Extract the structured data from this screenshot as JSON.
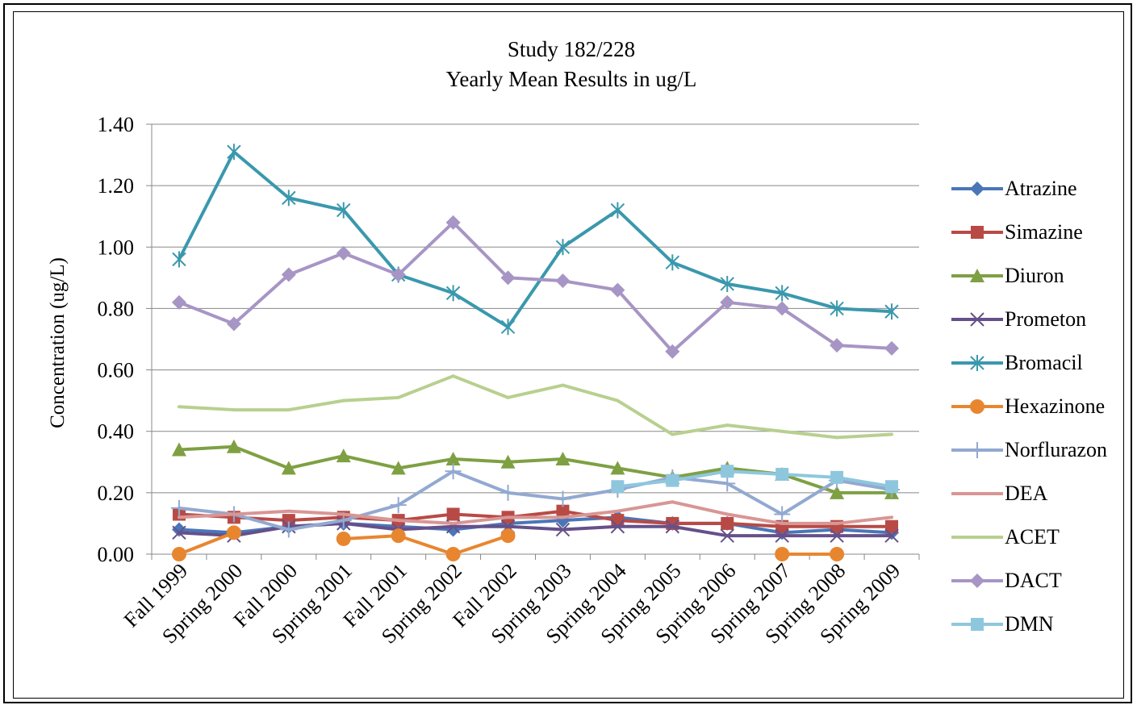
{
  "chart_data": {
    "type": "line",
    "title": "Study 182/228",
    "subtitle": "Yearly Mean Results in ug/L",
    "xlabel": "",
    "ylabel": "Concentration (ug/L)",
    "ylim": [
      0,
      1.4
    ],
    "yticks": [
      "0.00",
      "0.20",
      "0.40",
      "0.60",
      "0.80",
      "1.00",
      "1.20",
      "1.40"
    ],
    "grid": true,
    "legend_position": "right",
    "categories": [
      "Fall 1999",
      "Spring 2000",
      "Fall 2000",
      "Spring 2001",
      "Fall 2001",
      "Spring 2002",
      "Fall 2002",
      "Spring 2003",
      "Spring 2004",
      "Spring 2005",
      "Spring 2006",
      "Spring 2007",
      "Spring 2008",
      "Spring 2009"
    ],
    "series": [
      {
        "name": "Atrazine",
        "color": "#4a76b8",
        "marker": "diamond",
        "values": [
          0.08,
          0.07,
          0.09,
          0.1,
          0.09,
          0.08,
          0.1,
          0.11,
          0.12,
          0.1,
          0.1,
          0.07,
          0.08,
          0.07
        ]
      },
      {
        "name": "Simazine",
        "color": "#b84a46",
        "marker": "square",
        "values": [
          0.13,
          0.12,
          0.11,
          0.12,
          0.11,
          0.13,
          0.12,
          0.14,
          0.11,
          0.1,
          0.1,
          0.09,
          0.09,
          0.09
        ]
      },
      {
        "name": "Diuron",
        "color": "#7ea043",
        "marker": "triangle",
        "values": [
          0.34,
          0.35,
          0.28,
          0.32,
          0.28,
          0.31,
          0.3,
          0.31,
          0.28,
          0.25,
          0.28,
          0.26,
          0.2,
          0.2
        ]
      },
      {
        "name": "Prometon",
        "color": "#65508a",
        "marker": "x",
        "values": [
          0.07,
          0.06,
          0.09,
          0.1,
          0.08,
          0.09,
          0.09,
          0.08,
          0.09,
          0.09,
          0.06,
          0.06,
          0.06,
          0.06
        ]
      },
      {
        "name": "Bromacil",
        "color": "#3a98ad",
        "marker": "star",
        "values": [
          0.96,
          1.31,
          1.16,
          1.12,
          0.91,
          0.85,
          0.74,
          1.0,
          1.12,
          0.95,
          0.88,
          0.85,
          0.8,
          0.79
        ]
      },
      {
        "name": "Hexazinone",
        "color": "#e8862f",
        "marker": "circle",
        "values": [
          0.0,
          0.07,
          null,
          0.05,
          0.06,
          0.0,
          0.06,
          null,
          null,
          null,
          null,
          0.0,
          0.0,
          null
        ]
      },
      {
        "name": "Norflurazon",
        "color": "#92a9d1",
        "marker": "plus",
        "values": [
          0.15,
          0.13,
          0.08,
          0.11,
          0.16,
          0.27,
          0.2,
          0.18,
          0.21,
          0.25,
          0.23,
          0.13,
          0.24,
          0.21
        ]
      },
      {
        "name": "DEA",
        "color": "#d89694",
        "marker": "none",
        "values": [
          0.12,
          0.13,
          0.14,
          0.13,
          0.11,
          0.1,
          0.12,
          0.12,
          0.14,
          0.17,
          0.13,
          0.1,
          0.1,
          0.12
        ]
      },
      {
        "name": "ACET",
        "color": "#b8d08f",
        "marker": "none",
        "values": [
          0.48,
          0.47,
          0.47,
          0.5,
          0.51,
          0.58,
          0.51,
          0.55,
          0.5,
          0.39,
          0.42,
          0.4,
          0.38,
          0.39
        ]
      },
      {
        "name": "DACT",
        "color": "#a795c5",
        "marker": "diamond",
        "values": [
          0.82,
          0.75,
          0.91,
          0.98,
          0.91,
          1.08,
          0.9,
          0.89,
          0.86,
          0.66,
          0.82,
          0.8,
          0.68,
          0.67
        ]
      },
      {
        "name": "DMN",
        "color": "#8ec7dd",
        "marker": "square",
        "values": [
          null,
          null,
          null,
          null,
          null,
          null,
          null,
          null,
          0.22,
          0.24,
          0.27,
          0.26,
          0.25,
          0.22
        ]
      }
    ]
  }
}
